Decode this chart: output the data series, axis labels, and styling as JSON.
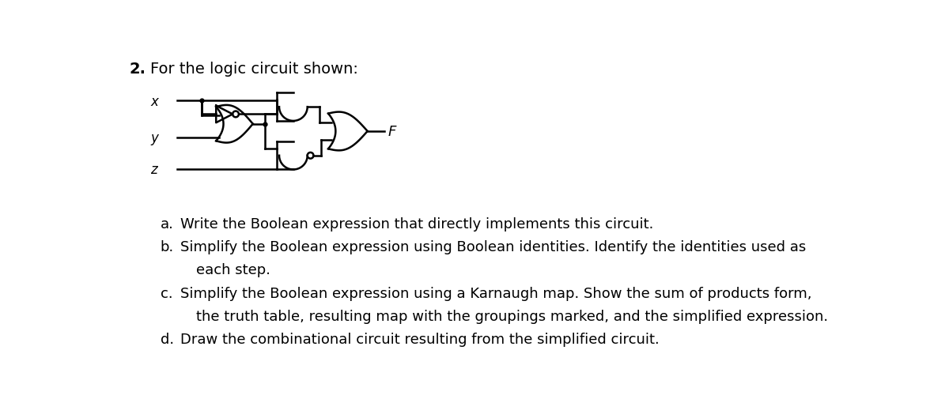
{
  "bg_color": "#ffffff",
  "line_color": "#000000",
  "title_number": "2.",
  "title_text": "For the logic circuit shown:",
  "title_fontsize": 14,
  "input_labels": [
    "x",
    "y",
    "z"
  ],
  "output_label": "F",
  "label_fontsize": 12,
  "items_fontsize": 13,
  "items": [
    {
      "label": "a.",
      "text": "Write the Boolean expression that directly implements this circuit."
    },
    {
      "label": "b.",
      "text": "Simplify the Boolean expression using Boolean identities. Identify the identities used as"
    },
    {
      "label": "",
      "text": "each step."
    },
    {
      "label": "c.",
      "text": "Simplify the Boolean expression using a Karnaugh map. Show the sum of products form,"
    },
    {
      "label": "",
      "text": "the truth table, resulting map with the groupings marked, and the simplified expression."
    },
    {
      "label": "d.",
      "text": "Draw the combinational circuit resulting from the simplified circuit."
    }
  ]
}
